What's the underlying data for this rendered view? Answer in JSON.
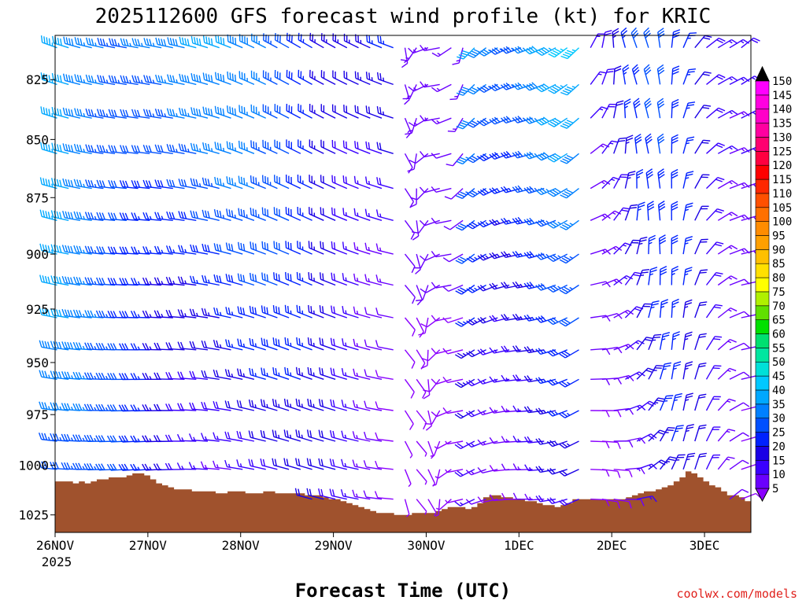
{
  "chart_data": {
    "type": "wind-profile",
    "title": "2025112600 GFS forecast wind profile (kt) for KRIC",
    "xlabel": "Forecast Time (UTC)",
    "credit": "coolwx.com/models",
    "year_label": "2025",
    "x_ticks": [
      {
        "label": "26NOV",
        "hour": 0
      },
      {
        "label": "27NOV",
        "hour": 24
      },
      {
        "label": "28NOV",
        "hour": 48
      },
      {
        "label": "29NOV",
        "hour": 72
      },
      {
        "label": "30NOV",
        "hour": 96
      },
      {
        "label": "1DEC",
        "hour": 120
      },
      {
        "label": "2DEC",
        "hour": 144
      },
      {
        "label": "3DEC",
        "hour": 168
      }
    ],
    "xlim": [
      0,
      180
    ],
    "ylim": [
      1034,
      807
    ],
    "y_ticks": [
      825,
      850,
      875,
      900,
      925,
      950,
      975,
      1000,
      1025
    ],
    "colorbar": {
      "levels": [
        5,
        10,
        15,
        20,
        25,
        30,
        35,
        40,
        45,
        50,
        55,
        60,
        65,
        70,
        75,
        80,
        85,
        90,
        95,
        100,
        105,
        110,
        115,
        120,
        125,
        130,
        135,
        140,
        145,
        150
      ],
      "colors": [
        "#8a00ff",
        "#6a00ff",
        "#3a00ff",
        "#1a00e6",
        "#0022ff",
        "#0050ff",
        "#0080ff",
        "#00a8ff",
        "#00c8ff",
        "#00e0d8",
        "#00e6a0",
        "#00e070",
        "#00e000",
        "#60e000",
        "#b0f000",
        "#ffff00",
        "#ffe000",
        "#ffc000",
        "#ffa000",
        "#ff8c00",
        "#ff7000",
        "#ff5000",
        "#ff2800",
        "#ff0000",
        "#ff0040",
        "#ff0070",
        "#ff00a0",
        "#ff00c8",
        "#ff00e0",
        "#ff00ff"
      ]
    },
    "levels_hpa": [
      812,
      827,
      841,
      856,
      871,
      885,
      900,
      914,
      929,
      944,
      958,
      973,
      988,
      1002,
      1017
    ],
    "terrain_surface_hpa": [
      1008,
      1008,
      1008,
      1009,
      1008,
      1009,
      1008,
      1007,
      1007,
      1006,
      1006,
      1006,
      1005,
      1004,
      1004,
      1005,
      1007,
      1009,
      1010,
      1011,
      1012,
      1012,
      1012,
      1013,
      1013,
      1013,
      1013,
      1014,
      1014,
      1013,
      1013,
      1013,
      1014,
      1014,
      1014,
      1013,
      1013,
      1014,
      1014,
      1014,
      1014,
      1014,
      1015,
      1015,
      1015,
      1016,
      1017,
      1017,
      1018,
      1019,
      1020,
      1021,
      1022,
      1023,
      1024,
      1024,
      1024,
      1025,
      1025,
      1025,
      1024,
      1024,
      1024,
      1024,
      1023,
      1022,
      1021,
      1021,
      1021,
      1022,
      1021,
      1019,
      1016,
      1015,
      1015,
      1016,
      1016,
      1017,
      1017,
      1018,
      1018,
      1019,
      1020,
      1020,
      1021,
      1020,
      1019,
      1017,
      1017,
      1017,
      1017,
      1017,
      1017,
      1017,
      1017,
      1017,
      1016,
      1015,
      1014,
      1013,
      1013,
      1012,
      1011,
      1010,
      1008,
      1006,
      1003,
      1004,
      1006,
      1008,
      1010,
      1011,
      1013,
      1015,
      1015,
      1016,
      1018
    ]
  }
}
